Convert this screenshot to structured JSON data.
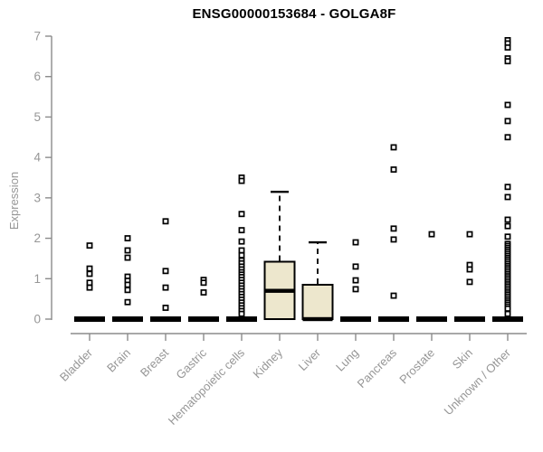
{
  "chart_data": {
    "type": "boxplot",
    "title": "ENSG00000153684 - GOLGA8F",
    "xlabel": "",
    "ylabel": "Expression",
    "ylim": [
      0,
      7
    ],
    "yticks": [
      0,
      1,
      2,
      3,
      4,
      5,
      6,
      7
    ],
    "grid": false,
    "legend": "none",
    "categories": [
      "Bladder",
      "Brain",
      "Breast",
      "Gastric",
      "Hematopoietic cells",
      "Kidney",
      "Liver",
      "Lung",
      "Pancreas",
      "Prostate",
      "Skin",
      "Unknown / Other"
    ],
    "series": [
      {
        "category": "Bladder",
        "q1": 0,
        "median": 0,
        "q3": 0,
        "whisker_low": 0,
        "whisker_high": 0,
        "outliers": [
          1.82,
          1.25,
          1.12,
          0.9,
          0.78
        ]
      },
      {
        "category": "Brain",
        "q1": 0,
        "median": 0,
        "q3": 0,
        "whisker_low": 0,
        "whisker_high": 0,
        "outliers": [
          2.0,
          1.7,
          1.52,
          1.05,
          0.95,
          0.85,
          0.72,
          0.42
        ]
      },
      {
        "category": "Breast",
        "q1": 0,
        "median": 0,
        "q3": 0,
        "whisker_low": 0,
        "whisker_high": 0,
        "outliers": [
          2.42,
          1.19,
          0.78,
          0.28
        ]
      },
      {
        "category": "Gastric",
        "q1": 0,
        "median": 0,
        "q3": 0,
        "whisker_low": 0,
        "whisker_high": 0,
        "outliers": [
          0.97,
          0.9,
          0.66
        ]
      },
      {
        "category": "Hematopoietic cells",
        "q1": 0,
        "median": 0,
        "q3": 0,
        "whisker_low": 0,
        "whisker_high": 0,
        "outliers": [
          3.5,
          3.42,
          2.6,
          2.2,
          1.92,
          1.7,
          1.58,
          1.45,
          1.38,
          1.3,
          1.23,
          1.16,
          1.1,
          1.04,
          0.97,
          0.9,
          0.83,
          0.76,
          0.69,
          0.62,
          0.55,
          0.48,
          0.41,
          0.34,
          0.27,
          0.2,
          0.13
        ]
      },
      {
        "category": "Kidney",
        "q1": 0,
        "median": 0.7,
        "q3": 1.42,
        "whisker_low": 0,
        "whisker_high": 3.15,
        "outliers": []
      },
      {
        "category": "Liver",
        "q1": 0,
        "median": 0,
        "q3": 0.85,
        "whisker_low": 0,
        "whisker_high": 1.9,
        "outliers": []
      },
      {
        "category": "Lung",
        "q1": 0,
        "median": 0,
        "q3": 0,
        "whisker_low": 0,
        "whisker_high": 0,
        "outliers": [
          1.9,
          1.3,
          0.96,
          0.74
        ]
      },
      {
        "category": "Pancreas",
        "q1": 0,
        "median": 0,
        "q3": 0,
        "whisker_low": 0,
        "whisker_high": 0,
        "outliers": [
          4.25,
          3.7,
          2.24,
          1.97,
          0.58
        ]
      },
      {
        "category": "Prostate",
        "q1": 0,
        "median": 0,
        "q3": 0,
        "whisker_low": 0,
        "whisker_high": 0,
        "outliers": [
          2.1
        ]
      },
      {
        "category": "Skin",
        "q1": 0,
        "median": 0,
        "q3": 0,
        "whisker_low": 0,
        "whisker_high": 0,
        "outliers": [
          2.1,
          1.34,
          1.23,
          0.92
        ]
      },
      {
        "category": "Unknown / Other",
        "q1": 0,
        "median": 0,
        "q3": 0,
        "whisker_low": 0,
        "whisker_high": 0,
        "outliers": [
          6.9,
          6.82,
          6.72,
          6.45,
          6.38,
          5.3,
          4.9,
          4.5,
          3.27,
          3.02,
          2.46,
          2.3,
          2.04,
          1.86,
          1.81,
          1.76,
          1.71,
          1.66,
          1.61,
          1.56,
          1.51,
          1.46,
          1.41,
          1.36,
          1.31,
          1.26,
          1.21,
          1.16,
          1.11,
          1.06,
          1.01,
          0.96,
          0.91,
          0.86,
          0.81,
          0.76,
          0.71,
          0.66,
          0.61,
          0.56,
          0.51,
          0.46,
          0.41,
          0.36,
          0.31,
          0.26,
          0.13
        ]
      }
    ],
    "colors": {
      "box_fill": "#EDE7CD",
      "box_stroke": "#000000",
      "median": "#000000",
      "outlier_stroke": "#000000",
      "outlier_fill": "#ffffff",
      "axis_line": "#8B8B8B",
      "tick_label": "#969696",
      "title": "#000000",
      "background": "#ffffff"
    }
  }
}
